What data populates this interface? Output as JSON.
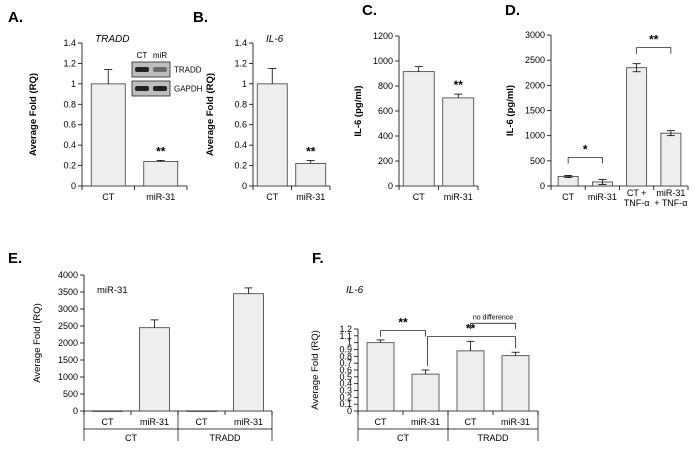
{
  "chart_data": [
    {
      "panel": "A.",
      "type": "bar",
      "gene_label": "TRADD",
      "ylabel": "Average Fold (RQ)",
      "ylim": [
        0,
        1.4
      ],
      "yticks": [
        "0",
        "0.2",
        "0.4",
        "0.6",
        "0.8",
        "1",
        "1.2",
        "1.4"
      ],
      "categories": [
        "CT",
        "miR-31"
      ],
      "values": [
        1.0,
        0.24
      ],
      "errors": [
        0.14,
        0.01
      ],
      "significance": [
        "",
        "**"
      ],
      "inset": {
        "columns": [
          "CT",
          "miR"
        ],
        "rows": [
          "TRADD",
          "GAPDH"
        ]
      }
    },
    {
      "panel": "B.",
      "type": "bar",
      "gene_label": "IL-6",
      "ylabel": "Average Fold (RQ)",
      "ylim": [
        0,
        1.4
      ],
      "yticks": [
        "0",
        "0.2",
        "0.4",
        "0.6",
        "0.8",
        "1",
        "1.2",
        "1.4"
      ],
      "categories": [
        "CT",
        "miR-31"
      ],
      "values": [
        1.0,
        0.22
      ],
      "errors": [
        0.15,
        0.03
      ],
      "significance": [
        "",
        "**"
      ]
    },
    {
      "panel": "C.",
      "type": "bar",
      "ylabel": "IL-6 (pg/ml)",
      "ylim": [
        0,
        1200
      ],
      "yticks": [
        "0",
        "200",
        "400",
        "600",
        "800",
        "1000",
        "1200"
      ],
      "categories": [
        "CT",
        "miR-31"
      ],
      "values": [
        915,
        705
      ],
      "errors": [
        40,
        30
      ],
      "significance": [
        "",
        "**"
      ]
    },
    {
      "panel": "D.",
      "type": "bar",
      "ylabel": "IL-6 (pg/ml)",
      "ylim": [
        0,
        3000
      ],
      "yticks": [
        "0",
        "500",
        "1000",
        "1500",
        "2000",
        "2500",
        "3000"
      ],
      "categories": [
        "CT",
        "miR-31",
        "CT +\nTNF-α",
        "miR-31\n+ TNF-α"
      ],
      "values": [
        190,
        80,
        2350,
        1050
      ],
      "errors": [
        20,
        50,
        80,
        50
      ],
      "comparisons": [
        {
          "from": 0,
          "to": 1,
          "label": "*"
        },
        {
          "from": 2,
          "to": 3,
          "label": "**"
        }
      ]
    },
    {
      "panel": "E.",
      "type": "bar",
      "title": "miR-31",
      "ylabel": "Average Fold (RQ)",
      "ylim": [
        0,
        4000
      ],
      "yticks": [
        "0",
        "500",
        "1000",
        "1500",
        "2000",
        "2500",
        "3000",
        "3500",
        "4000"
      ],
      "categories": [
        "CT",
        "miR-31",
        "CT",
        "miR-31"
      ],
      "groups": [
        {
          "label": "CT",
          "span": [
            0,
            1
          ]
        },
        {
          "label": "TRADD",
          "span": [
            2,
            3
          ]
        }
      ],
      "values": [
        5,
        2450,
        5,
        3450
      ],
      "errors": [
        0,
        230,
        0,
        170
      ]
    },
    {
      "panel": "F.",
      "type": "bar",
      "gene_label": "IL-6",
      "ylabel": "Average Fold (RQ)",
      "ylim": [
        0,
        1.2
      ],
      "yticks": [
        "0",
        "0.1",
        "0.2",
        "0.3",
        "0.4",
        "0.5",
        "0.6",
        "0.7",
        "0.8",
        "0.9",
        "1",
        "1.1",
        "1.2"
      ],
      "categories": [
        "CT",
        "miR-31",
        "CT",
        "miR-31"
      ],
      "groups": [
        {
          "label": "CT",
          "span": [
            0,
            1
          ]
        },
        {
          "label": "TRADD",
          "span": [
            2,
            3
          ]
        }
      ],
      "values": [
        1.0,
        0.54,
        0.88,
        0.81
      ],
      "errors": [
        0.04,
        0.06,
        0.14,
        0.05
      ],
      "comparisons": [
        {
          "from": 0,
          "to": 1,
          "label": "**"
        },
        {
          "from": 1,
          "to": 3,
          "label": "**"
        },
        {
          "from": 2,
          "to": 3,
          "label": "no difference"
        }
      ]
    }
  ]
}
